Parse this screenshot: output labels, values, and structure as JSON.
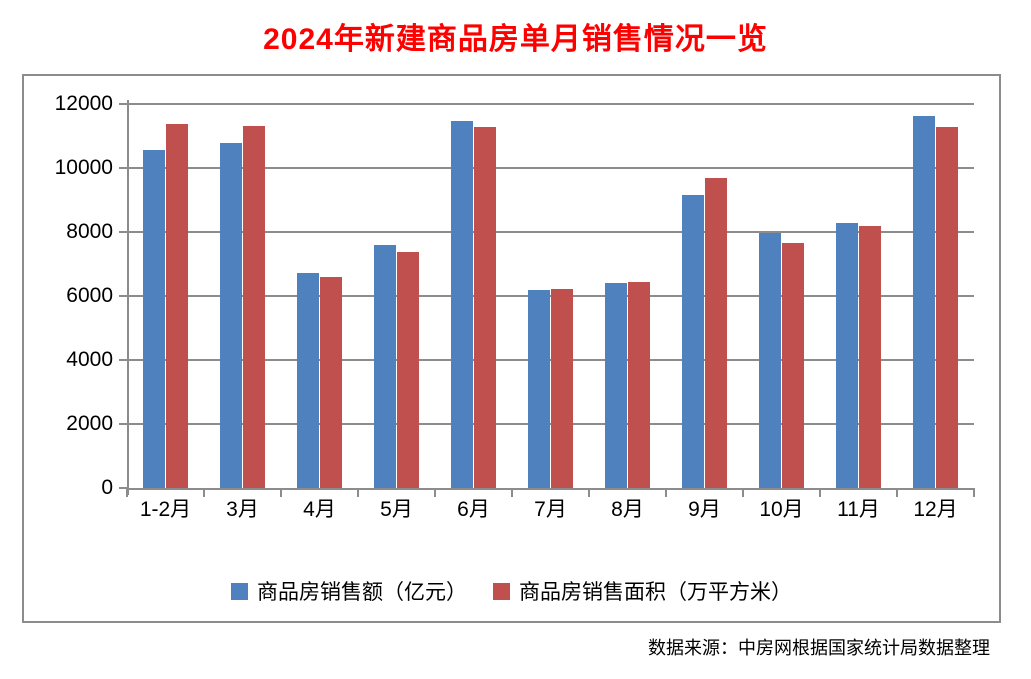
{
  "page": {
    "title": "2024年新建商品房单月销售情况一览",
    "source_note": "数据来源：中房网根据国家统计局数据整理"
  },
  "colors": {
    "title": "#ff0000",
    "series_amount": "#4e81bd",
    "series_area": "#c0504d",
    "grid": "#8c8c8c",
    "text": "#000000"
  },
  "chart_data": {
    "type": "bar",
    "title": "2024年新建商品房单月销售情况一览",
    "categories": [
      "1-2月",
      "3月",
      "4月",
      "5月",
      "6月",
      "7月",
      "8月",
      "9月",
      "10月",
      "11月",
      "12月"
    ],
    "series": [
      {
        "name": "商品房销售额（亿元）",
        "color": "#4e81bd",
        "values": [
          10566,
          10789,
          6712,
          7598,
          11468,
          6197,
          6393,
          9157,
          7975,
          8270,
          11625
        ]
      },
      {
        "name": "商品房销售面积（万平方米）",
        "color": "#c0504d",
        "values": [
          11369,
          11299,
          6584,
          7390,
          11274,
          6233,
          6453,
          9682,
          7646,
          8188,
          11267
        ]
      }
    ],
    "ylim": [
      0,
      12000
    ],
    "y_ticks": [
      0,
      2000,
      4000,
      6000,
      8000,
      10000,
      12000
    ],
    "grid": true,
    "legend_position": "bottom"
  }
}
